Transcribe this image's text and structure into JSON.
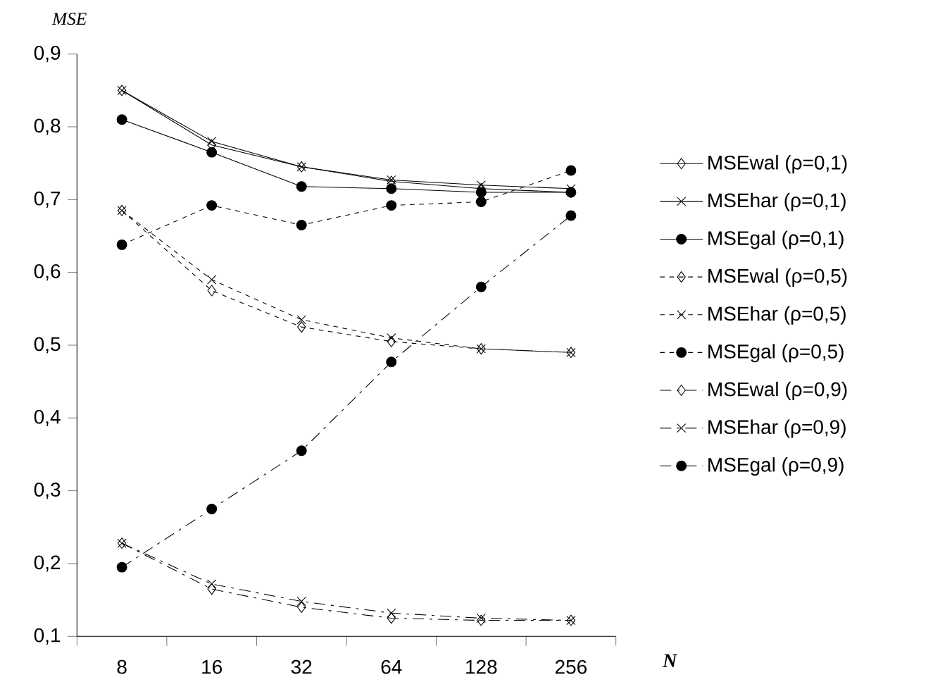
{
  "chart_data": {
    "type": "line",
    "xlabel": "N",
    "ylabel": "MSE",
    "categories": [
      "8",
      "16",
      "32",
      "64",
      "128",
      "256"
    ],
    "ylim": [
      0.1,
      0.9
    ],
    "yticks": [
      {
        "value": 0.1,
        "label": "0,1"
      },
      {
        "value": 0.2,
        "label": "0,2"
      },
      {
        "value": 0.3,
        "label": "0,3"
      },
      {
        "value": 0.4,
        "label": "0,4"
      },
      {
        "value": 0.5,
        "label": "0,5"
      },
      {
        "value": 0.6,
        "label": "0,6"
      },
      {
        "value": 0.7,
        "label": "0,7"
      },
      {
        "value": 0.8,
        "label": "0,8"
      },
      {
        "value": 0.9,
        "label": "0,9"
      }
    ],
    "grid": false,
    "legend": "right",
    "series": [
      {
        "name": "MSEwal (ρ=0,1)",
        "color": "#000000",
        "marker": "diamond",
        "line_style": "solid",
        "values": [
          0.85,
          0.775,
          0.745,
          0.725,
          0.715,
          0.71
        ]
      },
      {
        "name": "MSEhar (ρ=0,1)",
        "color": "#000000",
        "marker": "cross",
        "line_style": "solid",
        "values": [
          0.85,
          0.78,
          0.745,
          0.727,
          0.72,
          0.715
        ]
      },
      {
        "name": "MSEgal (ρ=0,1)",
        "color": "#000000",
        "marker": "circle",
        "line_style": "solid",
        "values": [
          0.81,
          0.765,
          0.718,
          0.715,
          0.71,
          0.71
        ]
      },
      {
        "name": "MSEwal (ρ=0,5)",
        "color": "#000000",
        "marker": "diamond",
        "line_style": "dotted",
        "values": [
          0.685,
          0.575,
          0.525,
          0.505,
          0.495,
          0.49
        ]
      },
      {
        "name": "MSEhar (ρ=0,5)",
        "color": "#000000",
        "marker": "cross",
        "line_style": "dotted",
        "values": [
          0.685,
          0.59,
          0.535,
          0.51,
          0.495,
          0.49
        ]
      },
      {
        "name": "MSEgal (ρ=0,5)",
        "color": "#000000",
        "marker": "circle",
        "line_style": "dotted",
        "values": [
          0.638,
          0.692,
          0.665,
          0.692,
          0.697,
          0.74
        ]
      },
      {
        "name": "MSEwal (ρ=0,9)",
        "color": "#000000",
        "marker": "diamond",
        "line_style": "dashdot",
        "values": [
          0.228,
          0.165,
          0.14,
          0.125,
          0.122,
          0.122
        ]
      },
      {
        "name": "MSEhar (ρ=0,9)",
        "color": "#000000",
        "marker": "cross",
        "line_style": "dashdot",
        "values": [
          0.228,
          0.172,
          0.148,
          0.132,
          0.125,
          0.122
        ]
      },
      {
        "name": "MSEgal (ρ=0,9)",
        "color": "#000000",
        "marker": "circle",
        "line_style": "dashdot",
        "values": [
          0.195,
          0.275,
          0.355,
          0.477,
          0.58,
          0.678
        ]
      }
    ]
  }
}
